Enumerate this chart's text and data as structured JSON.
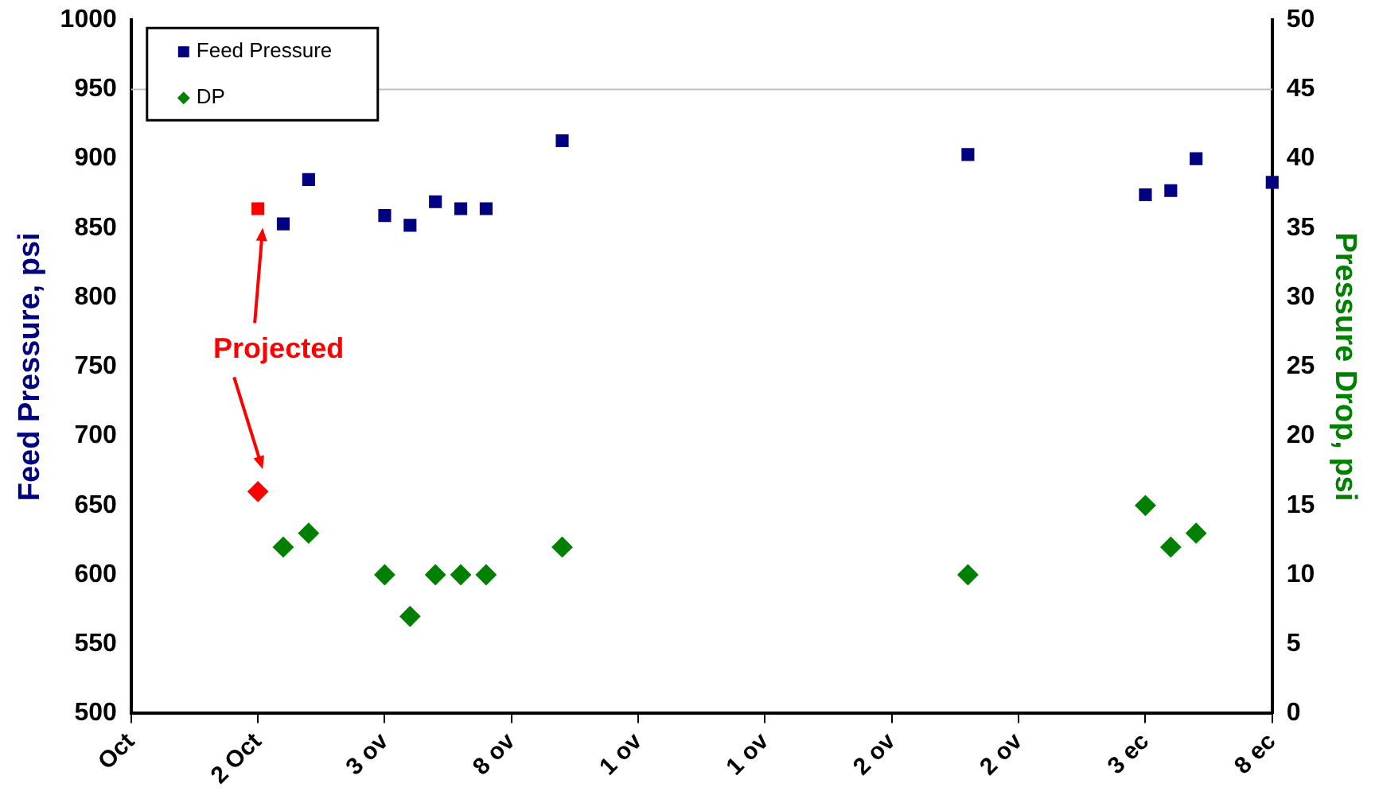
{
  "chart_data": {
    "type": "scatter",
    "ylabel": "Feed Pressure, psi",
    "y2label": "Pressure Drop, psi",
    "categories": [
      "Oct",
      null,
      null,
      null,
      null,
      "2 Oct",
      null,
      null,
      null,
      null,
      "3 ov",
      null,
      null,
      null,
      null,
      "8 ov",
      null,
      null,
      null,
      null,
      "1 ov",
      null,
      null,
      null,
      null,
      "1 ov",
      null,
      null,
      null,
      null,
      "2 ov",
      null,
      null,
      null,
      null,
      "2 ov",
      null,
      null,
      null,
      null,
      "3 ec",
      null,
      null,
      null,
      null,
      "8 ec"
    ],
    "ylim": [
      500,
      1000
    ],
    "yticks": [
      500,
      550,
      600,
      650,
      700,
      750,
      800,
      850,
      900,
      950,
      1000
    ],
    "y2lim": [
      0,
      50
    ],
    "y2ticks": [
      0,
      5,
      10,
      15,
      20,
      25,
      30,
      35,
      40,
      45,
      50
    ],
    "legend": "top left",
    "ref_lines": [
      {
        "axis": "y",
        "value": 950,
        "color": "#c0c0c0"
      }
    ],
    "annotations": [
      "Projected"
    ],
    "series": [
      {
        "name": "Feed Pressure",
        "color": "#000080",
        "marker": "square",
        "values": [
          null,
          null,
          null,
          null,
          null,
          864,
          853,
          885,
          null,
          null,
          859,
          852,
          869,
          864,
          864,
          null,
          null,
          913,
          null,
          null,
          null,
          null,
          null,
          null,
          null,
          null,
          null,
          null,
          null,
          null,
          null,
          null,
          null,
          903,
          null,
          null,
          null,
          null,
          null,
          null,
          874,
          877,
          900,
          null,
          null,
          883
        ],
        "colors": [
          "#000080",
          "#000080",
          "#000080",
          "#000080",
          "#000080",
          "#ff0000",
          "#000080",
          "#000080",
          "#000080",
          "#000080",
          "#000080",
          "#000080",
          "#000080",
          "#000080",
          "#000080",
          "#000080",
          "#000080",
          "#000080",
          "#000080",
          "#000080",
          "#000080",
          "#000080",
          "#000080",
          "#000080",
          "#000080",
          "#000080",
          "#000080",
          "#000080",
          "#000080",
          "#000080",
          "#000080",
          "#000080",
          "#000080",
          "#000080",
          "#000080",
          "#000080",
          "#000080",
          "#000080",
          "#000080",
          "#000080",
          "#000080",
          "#000080",
          "#000080",
          "#000080",
          "#000080",
          "#000080"
        ]
      },
      {
        "name": "DP",
        "color": "#008000",
        "marker": "diamond",
        "axis": "y2",
        "values": [
          null,
          null,
          null,
          null,
          null,
          16,
          12,
          13,
          null,
          null,
          10,
          7,
          10,
          10,
          10,
          null,
          null,
          12,
          null,
          null,
          null,
          null,
          null,
          null,
          null,
          null,
          null,
          null,
          null,
          null,
          null,
          null,
          null,
          10,
          null,
          null,
          null,
          null,
          null,
          null,
          15,
          12,
          13,
          null,
          null,
          null
        ],
        "colors": [
          "#008000",
          "#008000",
          "#008000",
          "#008000",
          "#008000",
          "#ff0000",
          "#008000",
          "#008000",
          "#008000",
          "#008000",
          "#008000",
          "#008000",
          "#008000",
          "#008000",
          "#008000",
          "#008000",
          "#008000",
          "#008000",
          "#008000",
          "#008000",
          "#008000",
          "#008000",
          "#008000",
          "#008000",
          "#008000",
          "#008000",
          "#008000",
          "#008000",
          "#008000",
          "#008000",
          "#008000",
          "#008000",
          "#008000",
          "#008000",
          "#008000",
          "#008000",
          "#008000",
          "#008000",
          "#008000",
          "#008000",
          "#008000",
          "#008000",
          "#008000",
          "#008000",
          "#008000",
          "#008000"
        ]
      }
    ]
  }
}
